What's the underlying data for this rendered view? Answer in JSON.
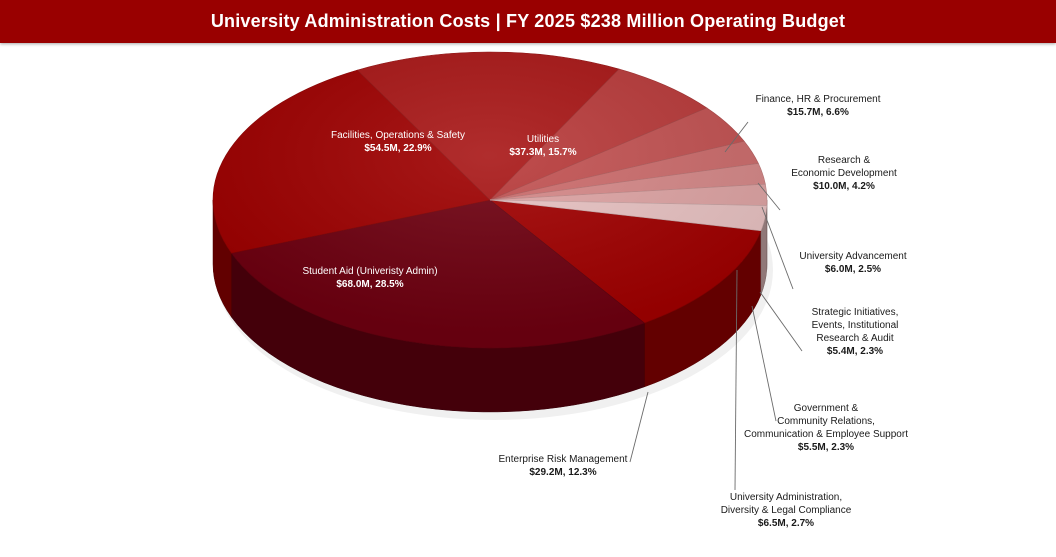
{
  "chart_data": {
    "type": "pie",
    "title": "University Administration Costs | FY 2025 $238 Million Operating Budget",
    "slices": [
      {
        "name": "Enterprise Risk Management",
        "value_label": "$29.2M, 12.3%",
        "value": 29.2,
        "percent": 12.3,
        "color": "#a00000",
        "label_side": "outside"
      },
      {
        "name": "Student Aid (Univeristy Admin)",
        "value_label": "$68.0M, 28.5%",
        "value": 68.0,
        "percent": 28.5,
        "color": "#6e0010",
        "label_side": "inside"
      },
      {
        "name": "Facilities, Operations & Safety",
        "value_label": "$54.5M, 22.9%",
        "value": 54.5,
        "percent": 22.9,
        "color": "#9e0000",
        "label_side": "inside"
      },
      {
        "name": "Utilities",
        "value_label": "$37.3M, 15.7%",
        "value": 37.3,
        "percent": 15.7,
        "color": "#a81616",
        "label_side": "inside"
      },
      {
        "name": "Finance, HR & Procurement",
        "value_label": "$15.7M, 6.6%",
        "value": 15.7,
        "percent": 6.6,
        "color": "#b83a3a",
        "label_side": "outside"
      },
      {
        "name": "Research & Economic Development",
        "value_label": "$10.0M, 4.2%",
        "value": 10.0,
        "percent": 4.2,
        "color": "#c25252",
        "label_side": "outside"
      },
      {
        "name": "University Advancement",
        "value_label": "$6.0M, 2.5%",
        "value": 6.0,
        "percent": 2.5,
        "color": "#cc6c6c",
        "label_side": "outside"
      },
      {
        "name": "Strategic Initiatives, Events, Institutional Research & Audit",
        "value_label": "$5.4M, 2.3%",
        "value": 5.4,
        "percent": 2.3,
        "color": "#d58888",
        "label_side": "outside"
      },
      {
        "name": "Government & Community Relations, Communication & Employee Support",
        "value_label": "$5.5M, 2.3%",
        "value": 5.5,
        "percent": 2.3,
        "color": "#dea4a4",
        "label_side": "outside"
      },
      {
        "name": "University Administration, Diversity & Legal Compliance",
        "value_label": "$6.5M, 2.7%",
        "value": 6.5,
        "percent": 2.7,
        "color": "#e8c2c2",
        "label_side": "outside"
      }
    ],
    "label_lines": {
      "Enterprise Risk Management": [
        "Enterprise Risk Management"
      ],
      "Student Aid (Univeristy Admin)": [
        "Student Aid (Univeristy Admin)"
      ],
      "Facilities, Operations & Safety": [
        "Facilities, Operations & Safety"
      ],
      "Utilities": [
        "Utilities"
      ],
      "Finance, HR & Procurement": [
        "Finance, HR & Procurement"
      ],
      "Research & Economic Development": [
        "Research &",
        "Economic Development"
      ],
      "University Advancement": [
        "University Advancement"
      ],
      "Strategic Initiatives, Events, Institutional Research & Audit": [
        "Strategic Initiatives,",
        "Events, Institutional",
        "Research & Audit"
      ],
      "Government & Community Relations, Communication & Employee Support": [
        "Government &",
        "Community Relations,",
        "Communication & Employee Support"
      ],
      "University Administration, Diversity & Legal Compliance": [
        "University Administration,",
        "Diversity & Legal Compliance"
      ]
    }
  }
}
